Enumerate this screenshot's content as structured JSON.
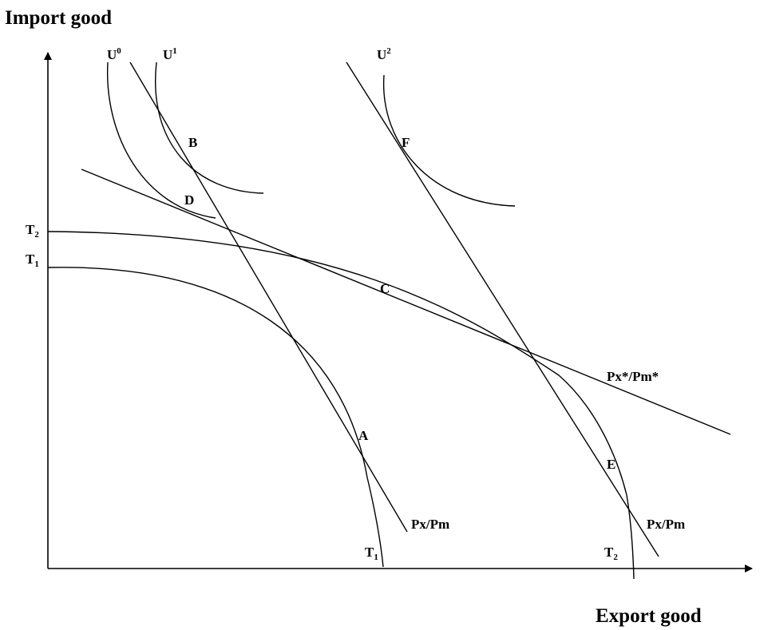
{
  "axes": {
    "y_label": "Import good",
    "x_label": "Export good"
  },
  "curves": {
    "indifference": [
      {
        "name": "U",
        "sup": "0"
      },
      {
        "name": "U",
        "sup": "1"
      },
      {
        "name": "U",
        "sup": "2"
      }
    ],
    "ppf": [
      {
        "name": "T",
        "sub": "1"
      },
      {
        "name": "T",
        "sub": "2"
      }
    ]
  },
  "price_lines": {
    "world_1": "Px/Pm",
    "world_2": "Px/Pm",
    "autarky": "Px*/Pm*"
  },
  "points": [
    "A",
    "B",
    "C",
    "D",
    "E",
    "F"
  ]
}
